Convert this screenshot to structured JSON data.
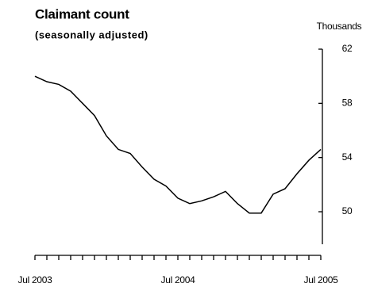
{
  "chart_data": {
    "type": "line",
    "title": "Claimant count",
    "subtitle": "(seasonally adjusted)",
    "y_axis_label": "Thousands",
    "categories": [
      "Jul 2003",
      null,
      null,
      null,
      null,
      null,
      null,
      null,
      null,
      null,
      null,
      null,
      "Jul 2004",
      null,
      null,
      null,
      null,
      null,
      null,
      null,
      null,
      null,
      null,
      null,
      "Jul 2005"
    ],
    "series": [
      {
        "name": "Claimant count",
        "color": "#000000",
        "values": [
          60.0,
          59.6,
          59.4,
          58.9,
          58.0,
          57.1,
          55.6,
          54.6,
          54.3,
          53.3,
          52.4,
          51.9,
          51.0,
          50.6,
          50.8,
          51.1,
          51.5,
          50.6,
          49.9,
          49.9,
          51.3,
          51.7,
          52.8,
          53.8,
          54.6
        ]
      }
    ],
    "ylim": [
      47.6,
      62
    ],
    "yticks": [
      50,
      54,
      58,
      62
    ],
    "grid": false
  }
}
